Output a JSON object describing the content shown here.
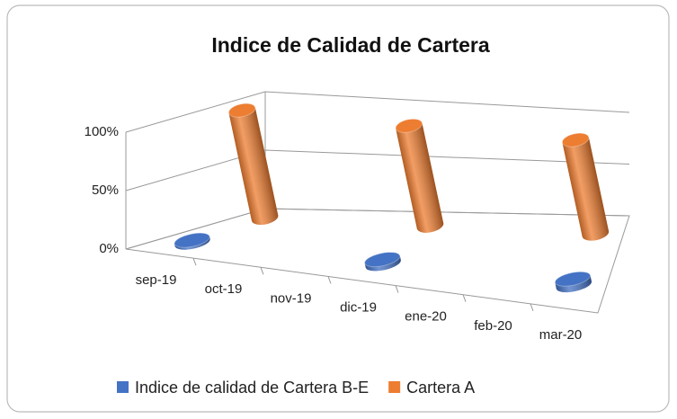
{
  "chart_data": {
    "type": "bar3d",
    "title": "Indice de Calidad de Cartera",
    "categories": [
      "sep-19",
      "oct-19",
      "nov-19",
      "dic-19",
      "ene-20",
      "feb-20",
      "mar-20"
    ],
    "series": [
      {
        "name": "Indice de calidad de Cartera B-E",
        "color": "#4472c4",
        "values": [
          2,
          null,
          null,
          4,
          null,
          null,
          6
        ]
      },
      {
        "name": "Cartera A",
        "color": "#ed7d31",
        "values": [
          95,
          null,
          null,
          93,
          null,
          null,
          92
        ]
      }
    ],
    "ylim": [
      0,
      100
    ],
    "yticks": [
      {
        "value": 0,
        "label": "0%"
      },
      {
        "value": 50,
        "label": "50%"
      },
      {
        "value": 100,
        "label": "100%"
      }
    ],
    "grid": true,
    "legend": "bottom"
  }
}
